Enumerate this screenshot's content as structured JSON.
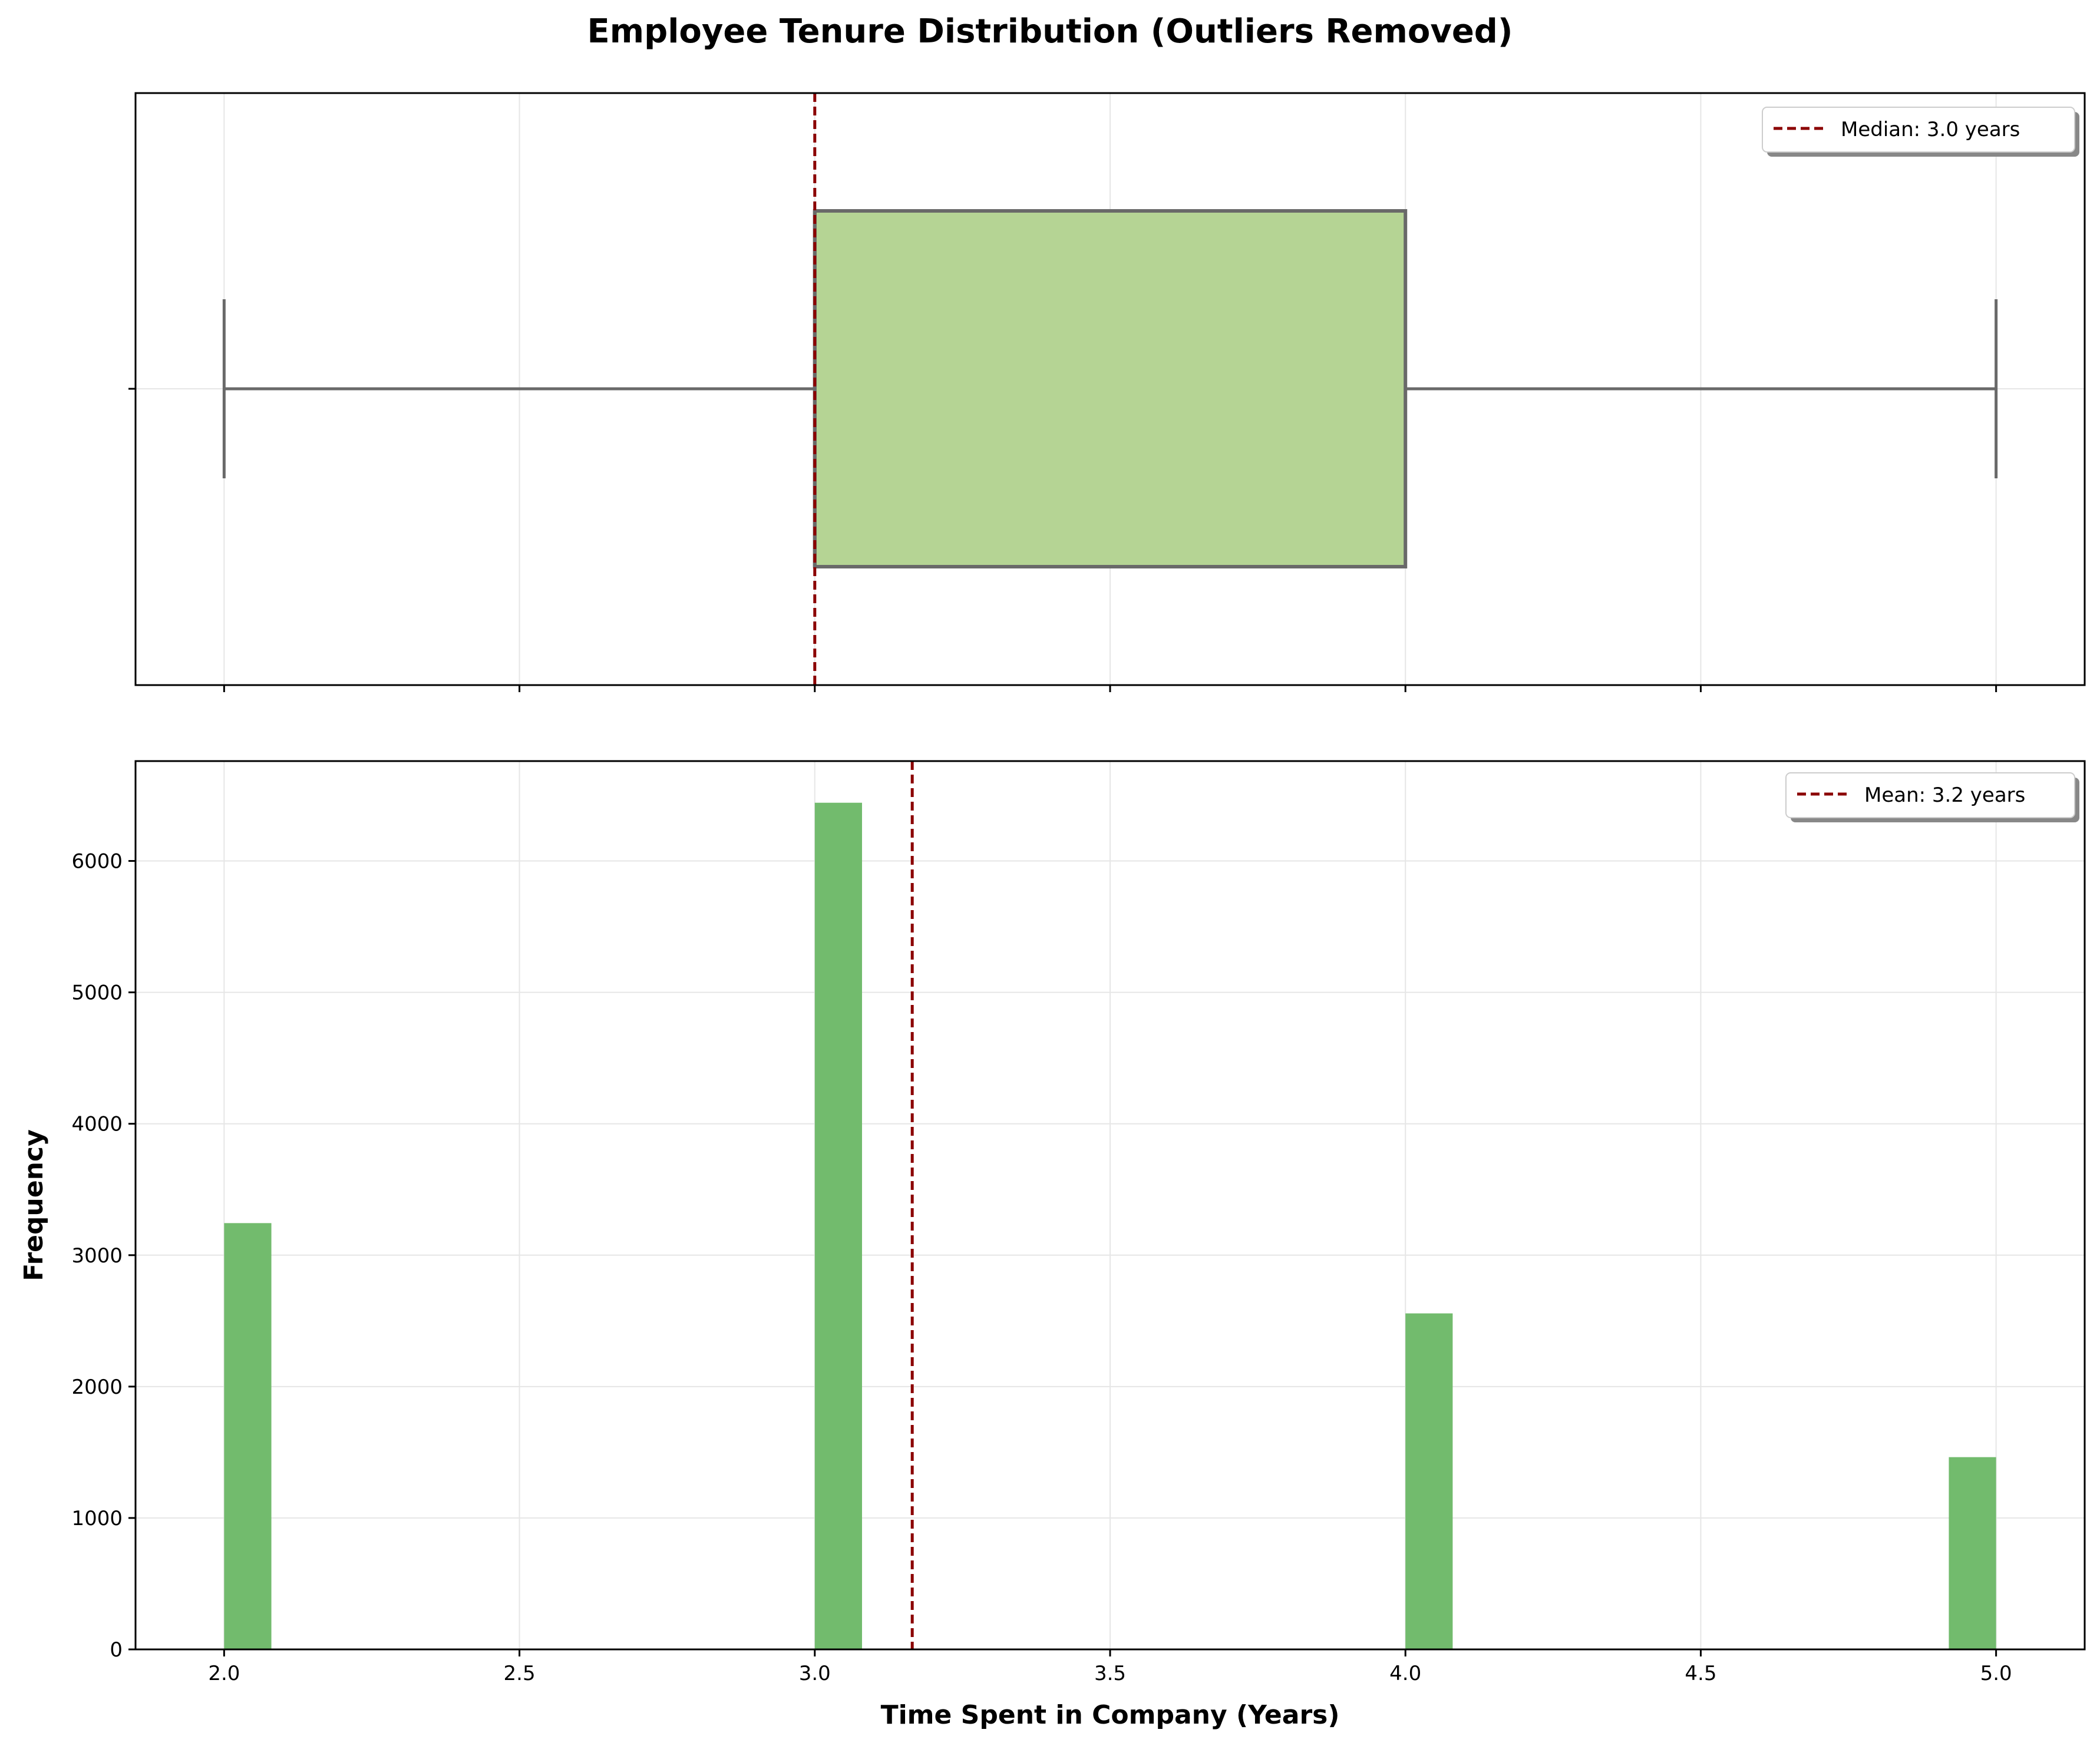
{
  "chart_data": [
    {
      "type": "box",
      "title": "Employee Tenure Distribution (Outliers Removed)",
      "box": {
        "whisker_low": 2.0,
        "q1": 3.0,
        "median": 3.0,
        "q3": 4.0,
        "whisker_high": 5.0
      },
      "reference_line": {
        "value": 3.0,
        "label": "Median: 3.0 years"
      },
      "xlim": [
        1.85,
        5.15
      ],
      "xticks": [
        2.0,
        2.5,
        3.0,
        3.5,
        4.0,
        4.5,
        5.0
      ],
      "grid": true,
      "legend_position": "top-right",
      "colors": {
        "box_fill": "#b5d494",
        "box_edge": "#696969",
        "reference_line": "#8b0000"
      }
    },
    {
      "type": "bar",
      "xlabel": "Time Spent in Company (Years)",
      "ylabel": "Frequency",
      "bars": [
        {
          "x": 2.0,
          "value": 3244
        },
        {
          "x": 3.0,
          "value": 6443
        },
        {
          "x": 4.0,
          "value": 2557
        },
        {
          "x": 5.0,
          "value": 1463
        }
      ],
      "bin_width": 0.08,
      "reference_line": {
        "value": 3.165,
        "label": "Mean: 3.2 years"
      },
      "xlim": [
        1.85,
        5.15
      ],
      "ylim": [
        0,
        6760
      ],
      "xticks": [
        2.0,
        2.5,
        3.0,
        3.5,
        4.0,
        4.5,
        5.0
      ],
      "xtick_labels": [
        "2.0",
        "2.5",
        "3.0",
        "3.5",
        "4.0",
        "4.5",
        "5.0"
      ],
      "yticks": [
        0,
        1000,
        2000,
        3000,
        4000,
        5000,
        6000
      ],
      "ytick_labels": [
        "0",
        "1000",
        "2000",
        "3000",
        "4000",
        "5000",
        "6000"
      ],
      "grid": true,
      "legend_position": "top-right",
      "colors": {
        "bar": "#72bb6d",
        "reference_line": "#8b0000"
      }
    }
  ]
}
